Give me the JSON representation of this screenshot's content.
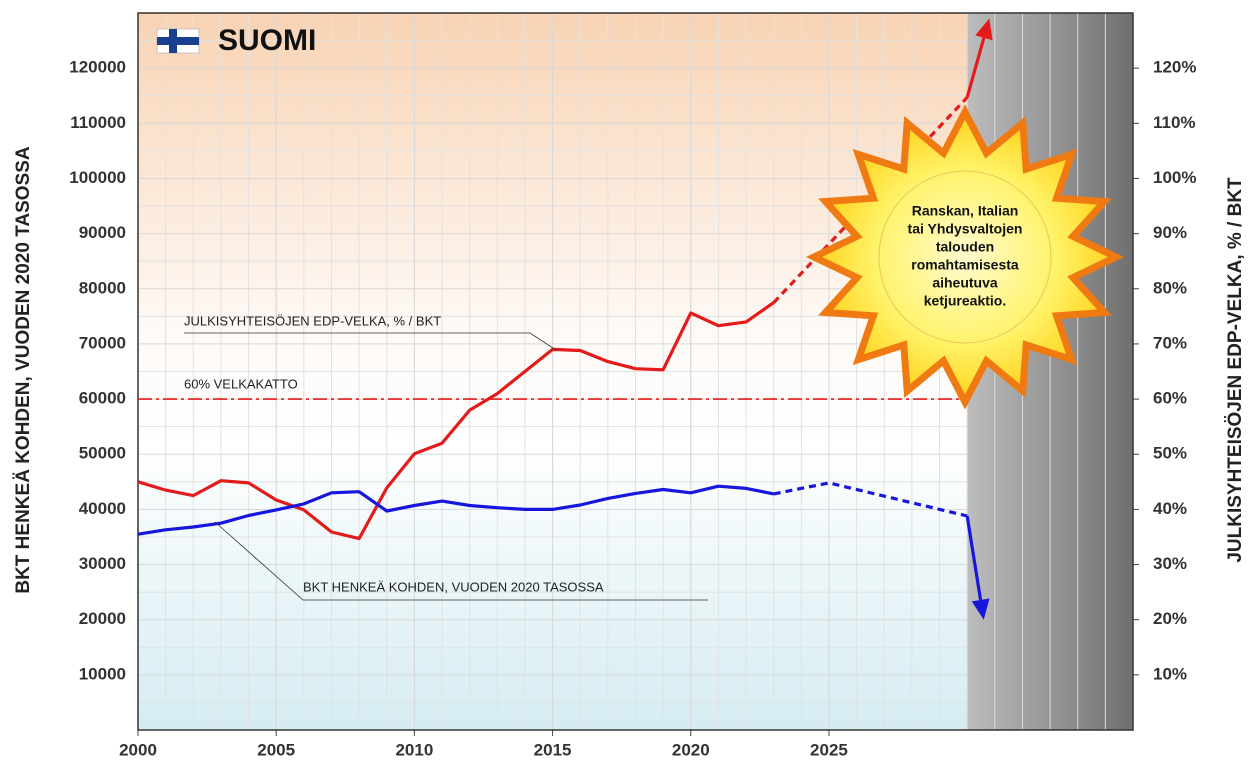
{
  "chart_data": {
    "type": "line",
    "title": "SUOMI",
    "ylabel": "BKT HENKEÄ KOHDEN, VUODEN 2020 TASOSSA",
    "y2label": "JULKISYHTEISÖJEN EDP-VELKA, % / BKT",
    "xlim": [
      2000,
      2036
    ],
    "xticks": [
      2000,
      2005,
      2010,
      2015,
      2020,
      2025
    ],
    "ylim": [
      0,
      130000
    ],
    "yticks": [
      10000,
      20000,
      30000,
      40000,
      50000,
      60000,
      70000,
      80000,
      90000,
      100000,
      110000,
      120000
    ],
    "y2lim": [
      0,
      130
    ],
    "y2ticks": [
      {
        "value": 10,
        "label": "10%"
      },
      {
        "value": 20,
        "label": "20%"
      },
      {
        "value": 30,
        "label": "30%"
      },
      {
        "value": 40,
        "label": "40%"
      },
      {
        "value": 50,
        "label": "50%"
      },
      {
        "value": 60,
        "label": "60%"
      },
      {
        "value": 70,
        "label": "70%"
      },
      {
        "value": 80,
        "label": "80%"
      },
      {
        "value": 90,
        "label": "90%"
      },
      {
        "value": 100,
        "label": "100%"
      },
      {
        "value": 110,
        "label": "110%"
      },
      {
        "value": 120,
        "label": "120%"
      }
    ],
    "grid": true,
    "shaded_from": 2030,
    "series": [
      {
        "name": "JULKISYHTEISÖJEN EDP-VELKA, % / BKT",
        "color": "#e31b1b",
        "axis": "y2",
        "x": [
          2000,
          2001,
          2002,
          2003,
          2004,
          2005,
          2006,
          2007,
          2008,
          2009,
          2010,
          2011,
          2012,
          2013,
          2014,
          2015,
          2016,
          2017,
          2018,
          2019,
          2020,
          2021,
          2022,
          2023
        ],
        "values": [
          45,
          43.5,
          42.5,
          45.2,
          44.8,
          41.7,
          39.9,
          35.9,
          34.7,
          43.9,
          50.1,
          52,
          58,
          61,
          65,
          69,
          68.8,
          66.8,
          65.5,
          65.3,
          75.6,
          73.3,
          74,
          77.5
        ],
        "projection": {
          "x": [
            2023,
            2030
          ],
          "values": [
            77.5,
            114.7
          ]
        },
        "arrow": {
          "x": 2030.8,
          "value": 129
        }
      },
      {
        "name": "BKT HENKEÄ KOHDEN, VUODEN 2020 TASOSSA",
        "color": "#1616dc",
        "axis": "y",
        "x": [
          2000,
          2001,
          2002,
          2003,
          2004,
          2005,
          2006,
          2007,
          2008,
          2009,
          2010,
          2011,
          2012,
          2013,
          2014,
          2015,
          2016,
          2017,
          2018,
          2019,
          2020,
          2021,
          2022,
          2023
        ],
        "values": [
          35500,
          36300,
          36800,
          37500,
          38900,
          39900,
          41000,
          43000,
          43200,
          39700,
          40700,
          41500,
          40700,
          40300,
          40000,
          40000,
          40800,
          42000,
          42900,
          43600,
          43000,
          44200,
          43800,
          42800
        ],
        "projection": {
          "x": [
            2023,
            2025,
            2030
          ],
          "values": [
            42800,
            44800,
            38800
          ]
        },
        "arrow": {
          "x": 2030.6,
          "value": 20000
        }
      }
    ],
    "reference": {
      "value": 60,
      "axis": "y2",
      "label": "60% VELKAKATTO",
      "color": "#e31b1b"
    },
    "annotation": [
      "Ranskan, Italian",
      "tai Yhdysvaltojen",
      "talouden",
      "romahtamisesta",
      "aiheutuva",
      "ketjureaktio."
    ]
  }
}
